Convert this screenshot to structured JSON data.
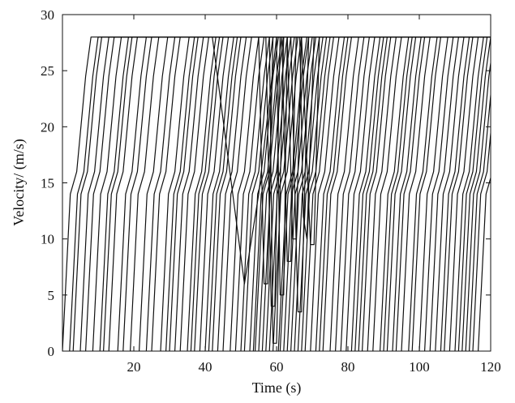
{
  "chart_data": {
    "type": "line",
    "title": "",
    "xlabel": "Time (s)",
    "ylabel": "Velocity/ (m/s)",
    "xlim": [
      0,
      120
    ],
    "ylim": [
      0,
      30
    ],
    "xticks": [
      20,
      40,
      60,
      80,
      100,
      120
    ],
    "xtick_labels": [
      "20",
      "40",
      "60",
      "80",
      "100",
      "120"
    ],
    "yticks": [
      0,
      5,
      10,
      15,
      20,
      25,
      30
    ],
    "ytick_labels": [
      "0",
      "5",
      "10",
      "15",
      "20",
      "25",
      "30"
    ],
    "grid": false,
    "legend": "none",
    "line_color": "#111111",
    "max_velocity": 28,
    "vehicle_start_times": [
      0,
      2,
      3,
      5,
      6.5,
      8.5,
      10.5,
      11.5,
      13,
      15.5,
      17,
      19,
      21.5,
      23.5,
      25,
      27.5,
      29,
      30,
      31.5,
      33,
      35,
      36,
      37,
      38.5,
      40,
      41,
      42,
      43.5,
      45,
      47,
      48.5,
      50,
      51,
      52.5,
      53.5,
      54,
      55,
      56,
      57,
      58,
      59,
      60.5,
      61,
      62,
      63,
      64,
      65,
      66,
      67,
      68,
      69.5,
      71,
      72,
      73,
      75,
      76.5,
      78,
      79.5,
      81,
      82,
      83,
      84,
      85.5,
      87,
      89,
      90,
      91,
      92.5,
      93.5,
      95,
      97,
      98,
      100,
      101.5,
      103,
      104.5,
      106,
      107,
      108.5,
      110,
      111,
      112,
      113,
      114,
      115,
      116.5
    ],
    "disturbances": [
      {
        "x": [
          42,
          51,
          55,
          60
        ],
        "y": [
          28,
          6,
          14,
          28
        ]
      },
      {
        "x": [
          55,
          56.5,
          57.5,
          59
        ],
        "y": [
          28,
          6,
          6,
          28
        ]
      },
      {
        "x": [
          60,
          61,
          62,
          63
        ],
        "y": [
          28,
          5,
          5,
          28
        ]
      },
      {
        "x": [
          61.5,
          63,
          64,
          65.5
        ],
        "y": [
          28,
          8,
          8,
          28
        ]
      },
      {
        "x": [
          63,
          64.5,
          65.5,
          67
        ],
        "y": [
          28,
          10,
          10,
          28
        ]
      },
      {
        "x": [
          64,
          66,
          67,
          69
        ],
        "y": [
          28,
          3.5,
          3.5,
          28
        ]
      },
      {
        "x": [
          66.5,
          67.5,
          68.5,
          70.5
        ],
        "y": [
          28,
          12,
          10,
          28
        ]
      },
      {
        "x": [
          67,
          69.5,
          70.5,
          72
        ],
        "y": [
          28,
          9.5,
          9.5,
          28
        ]
      },
      {
        "x": [
          58,
          59,
          60,
          62
        ],
        "y": [
          28,
          0.7,
          0.7,
          28
        ]
      },
      {
        "x": [
          57,
          58.5,
          59.5,
          61
        ],
        "y": [
          28,
          4,
          4,
          28
        ]
      }
    ]
  }
}
